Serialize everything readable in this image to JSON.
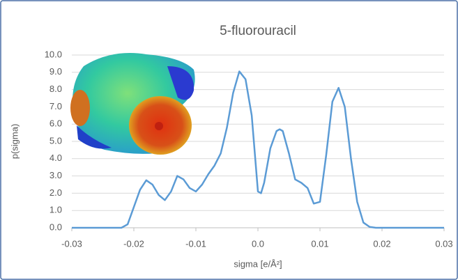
{
  "chart_data": {
    "type": "line",
    "title": "5-fluorouracil",
    "x_label": "sigma [e/Å²]",
    "y_label": "p(sigma)",
    "x": [
      -0.03,
      -0.022,
      -0.021,
      -0.02,
      -0.019,
      -0.018,
      -0.017,
      -0.016,
      -0.015,
      -0.014,
      -0.013,
      -0.012,
      -0.011,
      -0.01,
      -0.009,
      -0.008,
      -0.007,
      -0.006,
      -0.005,
      -0.004,
      -0.003,
      -0.002,
      -0.001,
      0,
      0.0005,
      0.001,
      0.002,
      0.003,
      0.0035,
      0.004,
      0.005,
      0.006,
      0.007,
      0.008,
      0.009,
      0.01,
      0.011,
      0.012,
      0.013,
      0.014,
      0.015,
      0.016,
      0.017,
      0.018,
      0.019,
      0.03
    ],
    "series": [
      {
        "name": "p(sigma)",
        "color": "#5b9bd5",
        "values": [
          0,
          0,
          0.2,
          1.2,
          2.2,
          2.75,
          2.5,
          1.9,
          1.6,
          2.1,
          3.0,
          2.8,
          2.3,
          2.1,
          2.5,
          3.1,
          3.6,
          4.3,
          5.8,
          7.8,
          9.05,
          8.6,
          6.5,
          2.1,
          2.0,
          2.6,
          4.6,
          5.6,
          5.7,
          5.6,
          4.3,
          2.8,
          2.6,
          2.3,
          1.4,
          1.5,
          4.2,
          7.3,
          8.1,
          7.0,
          4.0,
          1.5,
          0.3,
          0.05,
          0,
          0
        ]
      }
    ],
    "xlim": [
      -0.03,
      0.03
    ],
    "xticks": [
      -0.03,
      -0.02,
      -0.01,
      {
        "value": 0,
        "label": "0.0"
      },
      0.01,
      0.02,
      0.03
    ],
    "ylim": [
      0,
      10
    ],
    "yticks": [
      {
        "value": 0,
        "label": "0.0"
      },
      {
        "value": 1,
        "label": "1.0"
      },
      {
        "value": 2,
        "label": "2.0"
      },
      {
        "value": 3,
        "label": "3.0"
      },
      {
        "value": 4,
        "label": "4.0"
      },
      {
        "value": 5,
        "label": "5.0"
      },
      {
        "value": 6,
        "label": "6.0"
      },
      {
        "value": 7,
        "label": "7.0"
      },
      {
        "value": 8,
        "label": "8.0"
      },
      {
        "value": 9,
        "label": "9.0"
      },
      {
        "value": 10,
        "label": "10.0"
      }
    ],
    "grid": true
  }
}
